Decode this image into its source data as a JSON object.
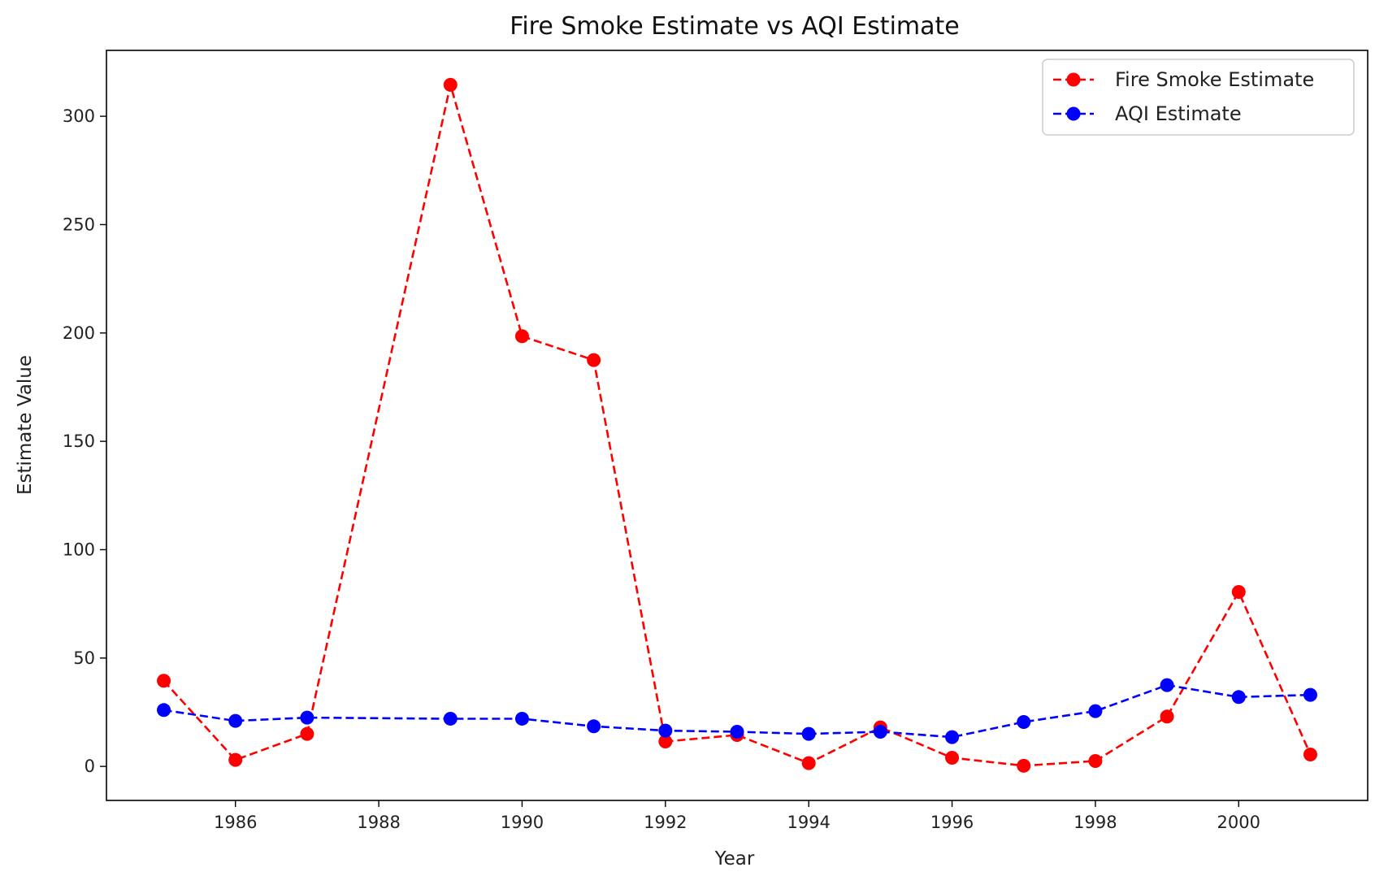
{
  "chart_data": {
    "type": "line",
    "title": "Fire Smoke Estimate vs AQI Estimate",
    "xlabel": "Year",
    "ylabel": "Estimate Value",
    "xlim": [
      1984.2,
      2001.8
    ],
    "ylim": [
      -15.7,
      330.4
    ],
    "xticks": [
      1986,
      1988,
      1990,
      1992,
      1994,
      1996,
      1998,
      2000
    ],
    "yticks": [
      0,
      50,
      100,
      150,
      200,
      250,
      300
    ],
    "grid": false,
    "legend_position": "top-right",
    "x": [
      1985,
      1986,
      1987,
      1989,
      1990,
      1991,
      1992,
      1993,
      1994,
      1995,
      1996,
      1997,
      1998,
      1999,
      2000,
      2001
    ],
    "series": [
      {
        "name": "Fire Smoke Estimate",
        "color": "#ff0000",
        "linestyle": "dashed",
        "marker": "circle",
        "values": [
          39.5,
          3.0,
          15.0,
          314.5,
          198.5,
          187.5,
          11.5,
          14.5,
          1.5,
          18.0,
          4.0,
          0.3,
          2.5,
          23.0,
          80.5,
          5.5
        ]
      },
      {
        "name": "AQI Estimate",
        "color": "#0000ff",
        "linestyle": "dashed",
        "marker": "circle",
        "values": [
          26.0,
          21.0,
          22.5,
          22.0,
          22.0,
          18.5,
          16.5,
          16.0,
          15.0,
          16.0,
          13.5,
          20.5,
          25.5,
          37.5,
          32.0,
          33.0
        ]
      }
    ]
  }
}
